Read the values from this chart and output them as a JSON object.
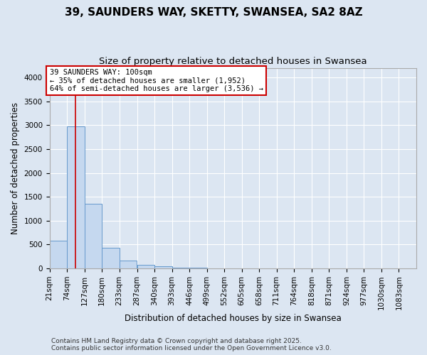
{
  "title1": "39, SAUNDERS WAY, SKETTY, SWANSEA, SA2 8AZ",
  "title2": "Size of property relative to detached houses in Swansea",
  "xlabel": "Distribution of detached houses by size in Swansea",
  "ylabel": "Number of detached properties",
  "bin_labels": [
    "21sqm",
    "74sqm",
    "127sqm",
    "180sqm",
    "233sqm",
    "287sqm",
    "340sqm",
    "393sqm",
    "446sqm",
    "499sqm",
    "552sqm",
    "605sqm",
    "658sqm",
    "711sqm",
    "764sqm",
    "818sqm",
    "871sqm",
    "924sqm",
    "977sqm",
    "1030sqm",
    "1083sqm"
  ],
  "bin_edges": [
    21,
    74,
    127,
    180,
    233,
    287,
    340,
    393,
    446,
    499,
    552,
    605,
    658,
    711,
    764,
    818,
    871,
    924,
    977,
    1030,
    1083
  ],
  "bar_heights": [
    580,
    2970,
    1350,
    430,
    160,
    80,
    50,
    20,
    10,
    5,
    3,
    2,
    1,
    1,
    1,
    0,
    0,
    0,
    0,
    0
  ],
  "bar_color": "#c5d8ef",
  "bar_edge_color": "#6699cc",
  "figure_bg": "#dce6f2",
  "axes_bg": "#dce6f2",
  "grid_color": "#ffffff",
  "red_line_x": 100,
  "annotation_title": "39 SAUNDERS WAY: 100sqm",
  "annotation_line1": "← 35% of detached houses are smaller (1,952)",
  "annotation_line2": "64% of semi-detached houses are larger (3,536) →",
  "annotation_box_color": "#cc0000",
  "ylim": [
    0,
    4200
  ],
  "yticks": [
    0,
    500,
    1000,
    1500,
    2000,
    2500,
    3000,
    3500,
    4000
  ],
  "footer1": "Contains HM Land Registry data © Crown copyright and database right 2025.",
  "footer2": "Contains public sector information licensed under the Open Government Licence v3.0.",
  "title_fontsize": 11,
  "subtitle_fontsize": 9.5,
  "label_fontsize": 8.5,
  "tick_fontsize": 7.5,
  "annotation_fontsize": 7.5,
  "footer_fontsize": 6.5
}
